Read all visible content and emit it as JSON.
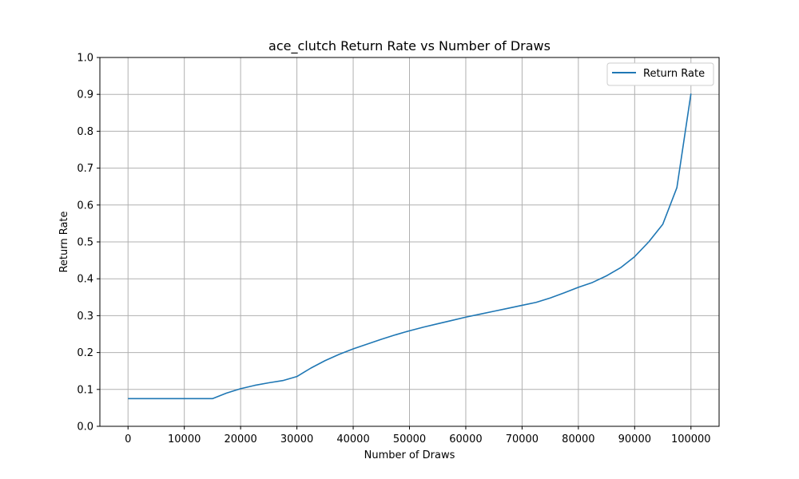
{
  "chart_data": {
    "type": "line",
    "title": "ace_clutch Return Rate vs Number of Draws",
    "xlabel": "Number of Draws",
    "ylabel": "Return Rate",
    "xlim": [
      -5000,
      105000
    ],
    "ylim": [
      0,
      1.0
    ],
    "x_ticks": [
      0,
      10000,
      20000,
      30000,
      40000,
      50000,
      60000,
      70000,
      80000,
      90000,
      100000
    ],
    "y_ticks": [
      0.0,
      0.1,
      0.2,
      0.3,
      0.4,
      0.5,
      0.6,
      0.7,
      0.8,
      0.9,
      1.0
    ],
    "x_tick_labels": [
      "0",
      "10000",
      "20000",
      "30000",
      "40000",
      "50000",
      "60000",
      "70000",
      "80000",
      "90000",
      "100000"
    ],
    "y_tick_labels": [
      "0.0",
      "0.1",
      "0.2",
      "0.3",
      "0.4",
      "0.5",
      "0.6",
      "0.7",
      "0.8",
      "0.9",
      "1.0"
    ],
    "grid": true,
    "legend_position": "top-right",
    "series": [
      {
        "name": "Return Rate",
        "color": "#1f77b4",
        "x": [
          0,
          2500,
          5000,
          7500,
          10000,
          12500,
          15000,
          17500,
          20000,
          22500,
          25000,
          27500,
          30000,
          32500,
          35000,
          37500,
          40000,
          42500,
          45000,
          47500,
          50000,
          52500,
          55000,
          57500,
          60000,
          62500,
          65000,
          67500,
          70000,
          72500,
          75000,
          77500,
          80000,
          82500,
          85000,
          87500,
          90000,
          92500,
          95000,
          97500,
          100000
        ],
        "values": [
          0.075,
          0.075,
          0.075,
          0.075,
          0.075,
          0.075,
          0.075,
          0.09,
          0.102,
          0.111,
          0.118,
          0.124,
          0.135,
          0.158,
          0.178,
          0.195,
          0.21,
          0.223,
          0.236,
          0.248,
          0.259,
          0.269,
          0.278,
          0.287,
          0.296,
          0.304,
          0.312,
          0.32,
          0.328,
          0.336,
          0.348,
          0.362,
          0.377,
          0.39,
          0.408,
          0.43,
          0.46,
          0.5,
          0.548,
          0.647,
          0.902
        ]
      }
    ]
  }
}
